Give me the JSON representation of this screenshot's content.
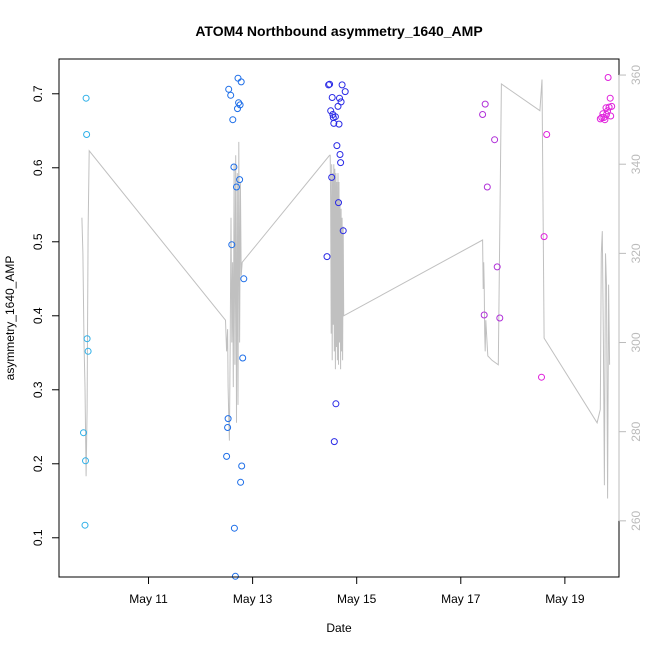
{
  "chart_data": {
    "type": "scatter",
    "title": "ATOM4 Northbound asymmetry_1640_AMP",
    "xlabel": "Date",
    "ylabel": "asymmetry_1640_AMP",
    "y_ticks": [
      "0.1",
      "0.2",
      "0.3",
      "0.4",
      "0.5",
      "0.6",
      "0.7"
    ],
    "x_ticks": [
      {
        "day": 11,
        "label": "May 11"
      },
      {
        "day": 13,
        "label": "May 13"
      },
      {
        "day": 15,
        "label": "May 15"
      },
      {
        "day": 17,
        "label": "May 17"
      },
      {
        "day": 19,
        "label": "May 19"
      }
    ],
    "right_ticks": [
      "260",
      "280",
      "300",
      "320",
      "340",
      "360"
    ],
    "xlim_days": [
      9.28,
      20.04
    ],
    "ylim": [
      0.047,
      0.747
    ],
    "ylim_right": [
      247.4,
      363.6
    ],
    "series": [
      {
        "color": "#2fb0e8",
        "points": [
          [
            9.75,
            0.242
          ],
          [
            9.78,
            0.117
          ],
          [
            9.79,
            0.204
          ],
          [
            9.8,
            0.694
          ],
          [
            9.81,
            0.645
          ],
          [
            9.82,
            0.369
          ],
          [
            9.84,
            0.352
          ]
        ]
      },
      {
        "color": "#1d6ee8",
        "points": [
          [
            12.5,
            0.21
          ],
          [
            12.52,
            0.249
          ],
          [
            12.53,
            0.261
          ],
          [
            12.54,
            0.706
          ],
          [
            12.58,
            0.698
          ],
          [
            12.6,
            0.496
          ],
          [
            12.62,
            0.665
          ],
          [
            12.64,
            0.601
          ],
          [
            12.65,
            0.113
          ],
          [
            12.67,
            0.048
          ],
          [
            12.69,
            0.574
          ],
          [
            12.71,
            0.68
          ],
          [
            12.72,
            0.721
          ],
          [
            12.73,
            0.688
          ],
          [
            12.75,
            0.584
          ],
          [
            12.76,
            0.685
          ],
          [
            12.77,
            0.175
          ],
          [
            12.78,
            0.716
          ],
          [
            12.79,
            0.197
          ],
          [
            12.81,
            0.343
          ],
          [
            12.83,
            0.45
          ]
        ]
      },
      {
        "color": "#2a2ae6",
        "points": [
          [
            14.43,
            0.48
          ],
          [
            14.46,
            0.712
          ],
          [
            14.48,
            0.713
          ],
          [
            14.5,
            0.677
          ],
          [
            14.52,
            0.587
          ],
          [
            14.53,
            0.695
          ],
          [
            14.54,
            0.672
          ],
          [
            14.55,
            0.668
          ],
          [
            14.56,
            0.66
          ],
          [
            14.57,
            0.23
          ],
          [
            14.59,
            0.669
          ],
          [
            14.6,
            0.281
          ],
          [
            14.62,
            0.63
          ],
          [
            14.64,
            0.683
          ],
          [
            14.65,
            0.553
          ],
          [
            14.66,
            0.659
          ],
          [
            14.67,
            0.694
          ],
          [
            14.68,
            0.618
          ],
          [
            14.69,
            0.607
          ],
          [
            14.7,
            0.689
          ],
          [
            14.72,
            0.712
          ],
          [
            14.74,
            0.515
          ],
          [
            14.78,
            0.703
          ]
        ]
      },
      {
        "color": "#b030d8",
        "points": [
          [
            17.42,
            0.672
          ],
          [
            17.45,
            0.401
          ],
          [
            17.47,
            0.686
          ],
          [
            17.51,
            0.574
          ],
          [
            17.65,
            0.638
          ],
          [
            17.7,
            0.466
          ],
          [
            17.75,
            0.397
          ]
        ]
      },
      {
        "color": "#e020dc",
        "points": [
          [
            18.55,
            0.317
          ],
          [
            18.6,
            0.507
          ],
          [
            18.65,
            0.645
          ],
          [
            19.68,
            0.666
          ],
          [
            19.71,
            0.668
          ],
          [
            19.73,
            0.673
          ],
          [
            19.75,
            0.668
          ],
          [
            19.77,
            0.665
          ],
          [
            19.79,
            0.681
          ],
          [
            19.8,
            0.672
          ],
          [
            19.82,
            0.677
          ],
          [
            19.83,
            0.722
          ],
          [
            19.85,
            0.682
          ],
          [
            19.87,
            0.694
          ],
          [
            19.88,
            0.67
          ],
          [
            19.9,
            0.683
          ]
        ]
      }
    ],
    "line": {
      "color": "#c0c0c0",
      "points": [
        [
          9.72,
          328
        ],
        [
          9.74,
          320
        ],
        [
          9.76,
          300
        ],
        [
          9.78,
          290
        ],
        [
          9.8,
          270
        ],
        [
          9.82,
          285
        ],
        [
          9.84,
          325
        ],
        [
          9.86,
          343
        ],
        [
          12.48,
          305
        ],
        [
          12.5,
          298
        ],
        [
          12.52,
          303
        ],
        [
          12.53,
          290
        ],
        [
          12.54,
          284
        ],
        [
          12.555,
          278
        ],
        [
          12.57,
          300
        ],
        [
          12.585,
          328
        ],
        [
          12.6,
          300
        ],
        [
          12.615,
          318
        ],
        [
          12.63,
          290
        ],
        [
          12.645,
          340
        ],
        [
          12.66,
          295
        ],
        [
          12.675,
          342
        ],
        [
          12.69,
          282
        ],
        [
          12.705,
          338
        ],
        [
          12.72,
          286
        ],
        [
          12.735,
          345
        ],
        [
          12.75,
          300
        ],
        [
          12.765,
          336
        ],
        [
          12.78,
          315
        ],
        [
          12.8,
          318
        ],
        [
          14.48,
          342
        ],
        [
          14.49,
          342
        ],
        [
          14.5,
          330
        ],
        [
          14.51,
          302
        ],
        [
          14.52,
          340
        ],
        [
          14.53,
          296
        ],
        [
          14.54,
          338
        ],
        [
          14.55,
          304
        ],
        [
          14.56,
          340
        ],
        [
          14.57,
          298
        ],
        [
          14.58,
          339
        ],
        [
          14.59,
          294
        ],
        [
          14.6,
          338
        ],
        [
          14.61,
          299
        ],
        [
          14.62,
          336
        ],
        [
          14.63,
          296
        ],
        [
          14.64,
          338
        ],
        [
          14.65,
          295
        ],
        [
          14.66,
          336
        ],
        [
          14.67,
          300
        ],
        [
          14.68,
          332
        ],
        [
          14.69,
          294
        ],
        [
          14.7,
          330
        ],
        [
          14.71,
          298
        ],
        [
          14.72,
          328
        ],
        [
          14.73,
          296
        ],
        [
          14.74,
          326
        ],
        [
          14.75,
          306
        ],
        [
          17.42,
          323
        ],
        [
          17.43,
          312
        ],
        [
          17.44,
          318
        ],
        [
          17.45,
          313
        ],
        [
          17.46,
          302
        ],
        [
          17.47,
          298
        ],
        [
          17.48,
          305
        ],
        [
          17.52,
          297
        ],
        [
          17.6,
          296
        ],
        [
          17.72,
          295
        ],
        [
          17.78,
          358
        ],
        [
          18.52,
          352
        ],
        [
          18.56,
          359
        ],
        [
          18.6,
          301
        ],
        [
          19.62,
          282
        ],
        [
          19.68,
          285
        ],
        [
          19.7,
          320
        ],
        [
          19.72,
          325
        ],
        [
          19.74,
          300
        ],
        [
          19.76,
          268
        ],
        [
          19.78,
          320
        ],
        [
          19.8,
          313
        ],
        [
          19.82,
          265
        ],
        [
          19.84,
          313
        ],
        [
          19.86,
          295
        ]
      ]
    }
  }
}
